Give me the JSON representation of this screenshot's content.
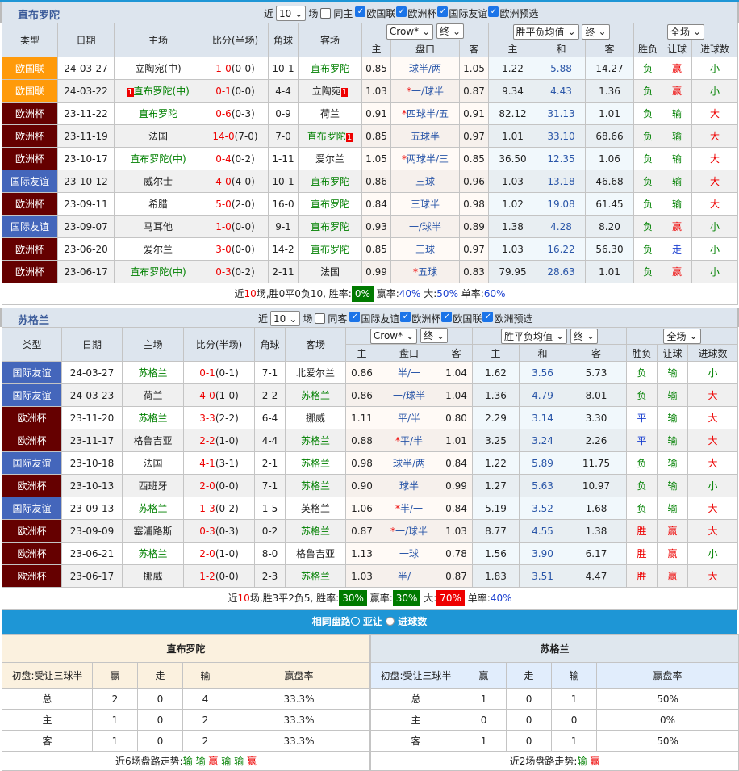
{
  "colors": {
    "欧国联": "#ff9a0a",
    "欧洲杯": "#650000",
    "国际友谊": "#4466bb",
    "win": "#e00",
    "draw": "#1a3fd0",
    "loss": "#008000"
  },
  "filter": {
    "near": "近",
    "count": "10",
    "unit": "场"
  },
  "columns": {
    "type": "类型",
    "date": "日期",
    "home": "主场",
    "score": "比分(半场)",
    "corner": "角球",
    "away": "客场",
    "h": "主",
    "line": "盘口",
    "a": "客",
    "oh": "主",
    "od": "和",
    "oa": "客",
    "res": "胜负",
    "hc": "让球",
    "ou": "进球数"
  },
  "selects": {
    "company": "Crow*",
    "period1": "终",
    "avg": "胜平负均值",
    "period2": "终",
    "scope": "全场"
  },
  "team1": {
    "name": "直布罗陀",
    "same": "同主",
    "checks": [
      "欧国联",
      "欧洲杯",
      "国际友谊",
      "欧洲预选"
    ],
    "rows": [
      [
        "欧国联",
        "24-03-27",
        "立陶宛(中)",
        "k",
        "",
        "1-0",
        "(0-0)",
        "10-1",
        "直布罗陀",
        "g",
        "",
        "0.85",
        "球半/两",
        false,
        "1.05",
        "1.22",
        "5.88",
        "14.27",
        "负",
        "赢",
        "小"
      ],
      [
        "欧国联",
        "24-03-22",
        "直布罗陀(中)",
        "g",
        "1",
        "0-1",
        "(0-0)",
        "4-4",
        "立陶宛",
        "k",
        "1",
        "1.03",
        "一/球半",
        true,
        "0.87",
        "9.34",
        "4.43",
        "1.36",
        "负",
        "赢",
        "小"
      ],
      [
        "欧洲杯",
        "23-11-22",
        "直布罗陀",
        "g",
        "",
        "0-6",
        "(0-3)",
        "0-9",
        "荷兰",
        "k",
        "",
        "0.91",
        "四球半/五",
        true,
        "0.91",
        "82.12",
        "31.13",
        "1.01",
        "负",
        "输",
        "大"
      ],
      [
        "欧洲杯",
        "23-11-19",
        "法国",
        "k",
        "",
        "14-0",
        "(7-0)",
        "7-0",
        "直布罗陀",
        "g",
        "1",
        "0.85",
        "五球半",
        false,
        "0.97",
        "1.01",
        "33.10",
        "68.66",
        "负",
        "输",
        "大"
      ],
      [
        "欧洲杯",
        "23-10-17",
        "直布罗陀(中)",
        "g",
        "",
        "0-4",
        "(0-2)",
        "1-11",
        "爱尔兰",
        "k",
        "",
        "1.05",
        "两球半/三",
        true,
        "0.85",
        "36.50",
        "12.35",
        "1.06",
        "负",
        "输",
        "大"
      ],
      [
        "国际友谊",
        "23-10-12",
        "威尔士",
        "k",
        "",
        "4-0",
        "(4-0)",
        "10-1",
        "直布罗陀",
        "g",
        "",
        "0.86",
        "三球",
        false,
        "0.96",
        "1.03",
        "13.18",
        "46.68",
        "负",
        "输",
        "大"
      ],
      [
        "欧洲杯",
        "23-09-11",
        "希腊",
        "k",
        "",
        "5-0",
        "(2-0)",
        "16-0",
        "直布罗陀",
        "g",
        "",
        "0.84",
        "三球半",
        false,
        "0.98",
        "1.02",
        "19.08",
        "61.45",
        "负",
        "输",
        "大"
      ],
      [
        "国际友谊",
        "23-09-07",
        "马耳他",
        "k",
        "",
        "1-0",
        "(0-0)",
        "9-1",
        "直布罗陀",
        "g",
        "",
        "0.93",
        "一/球半",
        false,
        "0.89",
        "1.38",
        "4.28",
        "8.20",
        "负",
        "赢",
        "小"
      ],
      [
        "欧洲杯",
        "23-06-20",
        "爱尔兰",
        "k",
        "",
        "3-0",
        "(0-0)",
        "14-2",
        "直布罗陀",
        "g",
        "",
        "0.85",
        "三球",
        false,
        "0.97",
        "1.03",
        "16.22",
        "56.30",
        "负",
        "走",
        "小"
      ],
      [
        "欧洲杯",
        "23-06-17",
        "直布罗陀(中)",
        "g",
        "",
        "0-3",
        "(0-2)",
        "2-11",
        "法国",
        "k",
        "",
        "0.99",
        "五球",
        true,
        "0.83",
        "79.95",
        "28.63",
        "1.01",
        "负",
        "赢",
        "小"
      ]
    ],
    "summary": {
      "a": "近",
      "n": "10",
      "b": "场,胜0平0负10, 胜率:",
      "win": "0%",
      "win_color": "#007a00",
      "c": " 赢率:",
      "hc": "40%",
      "hc_color": "",
      "d": " 大:",
      "big": "50%",
      "big_color": "",
      "e": " 单率:",
      "odd": "60%"
    }
  },
  "team2": {
    "name": "苏格兰",
    "same": "同客",
    "checks": [
      "国际友谊",
      "欧洲杯",
      "欧国联",
      "欧洲预选"
    ],
    "rows": [
      [
        "国际友谊",
        "24-03-27",
        "苏格兰",
        "g",
        "",
        "0-1",
        "(0-1)",
        "7-1",
        "北爱尔兰",
        "k",
        "",
        "0.86",
        "半/一",
        false,
        "1.04",
        "1.62",
        "3.56",
        "5.73",
        "负",
        "输",
        "小"
      ],
      [
        "国际友谊",
        "24-03-23",
        "荷兰",
        "k",
        "",
        "4-0",
        "(1-0)",
        "2-2",
        "苏格兰",
        "g",
        "",
        "0.86",
        "一/球半",
        false,
        "1.04",
        "1.36",
        "4.79",
        "8.01",
        "负",
        "输",
        "大"
      ],
      [
        "欧洲杯",
        "23-11-20",
        "苏格兰",
        "g",
        "",
        "3-3",
        "(2-2)",
        "6-4",
        "挪威",
        "k",
        "",
        "1.11",
        "平/半",
        false,
        "0.80",
        "2.29",
        "3.14",
        "3.30",
        "平",
        "输",
        "大"
      ],
      [
        "欧洲杯",
        "23-11-17",
        "格鲁吉亚",
        "k",
        "",
        "2-2",
        "(1-0)",
        "4-4",
        "苏格兰",
        "g",
        "",
        "0.88",
        "平/半",
        true,
        "1.01",
        "3.25",
        "3.24",
        "2.26",
        "平",
        "输",
        "大"
      ],
      [
        "国际友谊",
        "23-10-18",
        "法国",
        "k",
        "",
        "4-1",
        "(3-1)",
        "2-1",
        "苏格兰",
        "g",
        "",
        "0.98",
        "球半/两",
        false,
        "0.84",
        "1.22",
        "5.89",
        "11.75",
        "负",
        "输",
        "大"
      ],
      [
        "欧洲杯",
        "23-10-13",
        "西班牙",
        "k",
        "",
        "2-0",
        "(0-0)",
        "7-1",
        "苏格兰",
        "g",
        "",
        "0.90",
        "球半",
        false,
        "0.99",
        "1.27",
        "5.63",
        "10.97",
        "负",
        "输",
        "小"
      ],
      [
        "国际友谊",
        "23-09-13",
        "苏格兰",
        "g",
        "",
        "1-3",
        "(0-2)",
        "1-5",
        "英格兰",
        "k",
        "",
        "1.06",
        "半/一",
        true,
        "0.84",
        "5.19",
        "3.52",
        "1.68",
        "负",
        "输",
        "大"
      ],
      [
        "欧洲杯",
        "23-09-09",
        "塞浦路斯",
        "k",
        "",
        "0-3",
        "(0-3)",
        "0-2",
        "苏格兰",
        "g",
        "",
        "0.87",
        "一/球半",
        true,
        "1.03",
        "8.77",
        "4.55",
        "1.38",
        "胜",
        "赢",
        "大"
      ],
      [
        "欧洲杯",
        "23-06-21",
        "苏格兰",
        "g",
        "",
        "2-0",
        "(1-0)",
        "8-0",
        "格鲁吉亚",
        "k",
        "",
        "1.13",
        "一球",
        false,
        "0.78",
        "1.56",
        "3.90",
        "6.17",
        "胜",
        "赢",
        "小"
      ],
      [
        "欧洲杯",
        "23-06-17",
        "挪威",
        "k",
        "",
        "1-2",
        "(0-0)",
        "2-3",
        "苏格兰",
        "g",
        "",
        "1.03",
        "半/一",
        false,
        "0.87",
        "1.83",
        "3.51",
        "4.47",
        "胜",
        "赢",
        "大"
      ]
    ],
    "summary": {
      "a": "近",
      "n": "10",
      "b": "场,胜3平2负5, 胜率:",
      "win": "30%",
      "win_color": "#007a00",
      "c": " 赢率:",
      "hc": "30%",
      "hc_color": "#007a00",
      "d": " 大:",
      "big": "70%",
      "big_color": "#ee0000",
      "e": " 单率:",
      "odd": "40%"
    }
  },
  "same": {
    "title": "相同盘路",
    "opt1": "亚让",
    "opt2": "进球数",
    "left": {
      "name": "直布罗陀",
      "head": [
        "初盘:受让三球半",
        "赢",
        "走",
        "输",
        "赢盘率"
      ],
      "rows": [
        [
          "总",
          "2",
          "0",
          "4",
          "33.3%"
        ],
        [
          "主",
          "1",
          "0",
          "2",
          "33.3%"
        ],
        [
          "客",
          "1",
          "0",
          "2",
          "33.3%"
        ]
      ],
      "trend_label": "近6场盘路走势:",
      "trend": [
        "输",
        "输",
        "赢",
        "输",
        "输",
        "赢"
      ]
    },
    "right": {
      "name": "苏格兰",
      "head": [
        "初盘:受让三球半",
        "赢",
        "走",
        "输",
        "赢盘率"
      ],
      "rows": [
        [
          "总",
          "1",
          "0",
          "1",
          "50%"
        ],
        [
          "主",
          "0",
          "0",
          "0",
          "0%"
        ],
        [
          "客",
          "1",
          "0",
          "1",
          "50%"
        ]
      ],
      "trend_label": "近2场盘路走势:",
      "trend": [
        "输",
        "赢"
      ]
    }
  }
}
